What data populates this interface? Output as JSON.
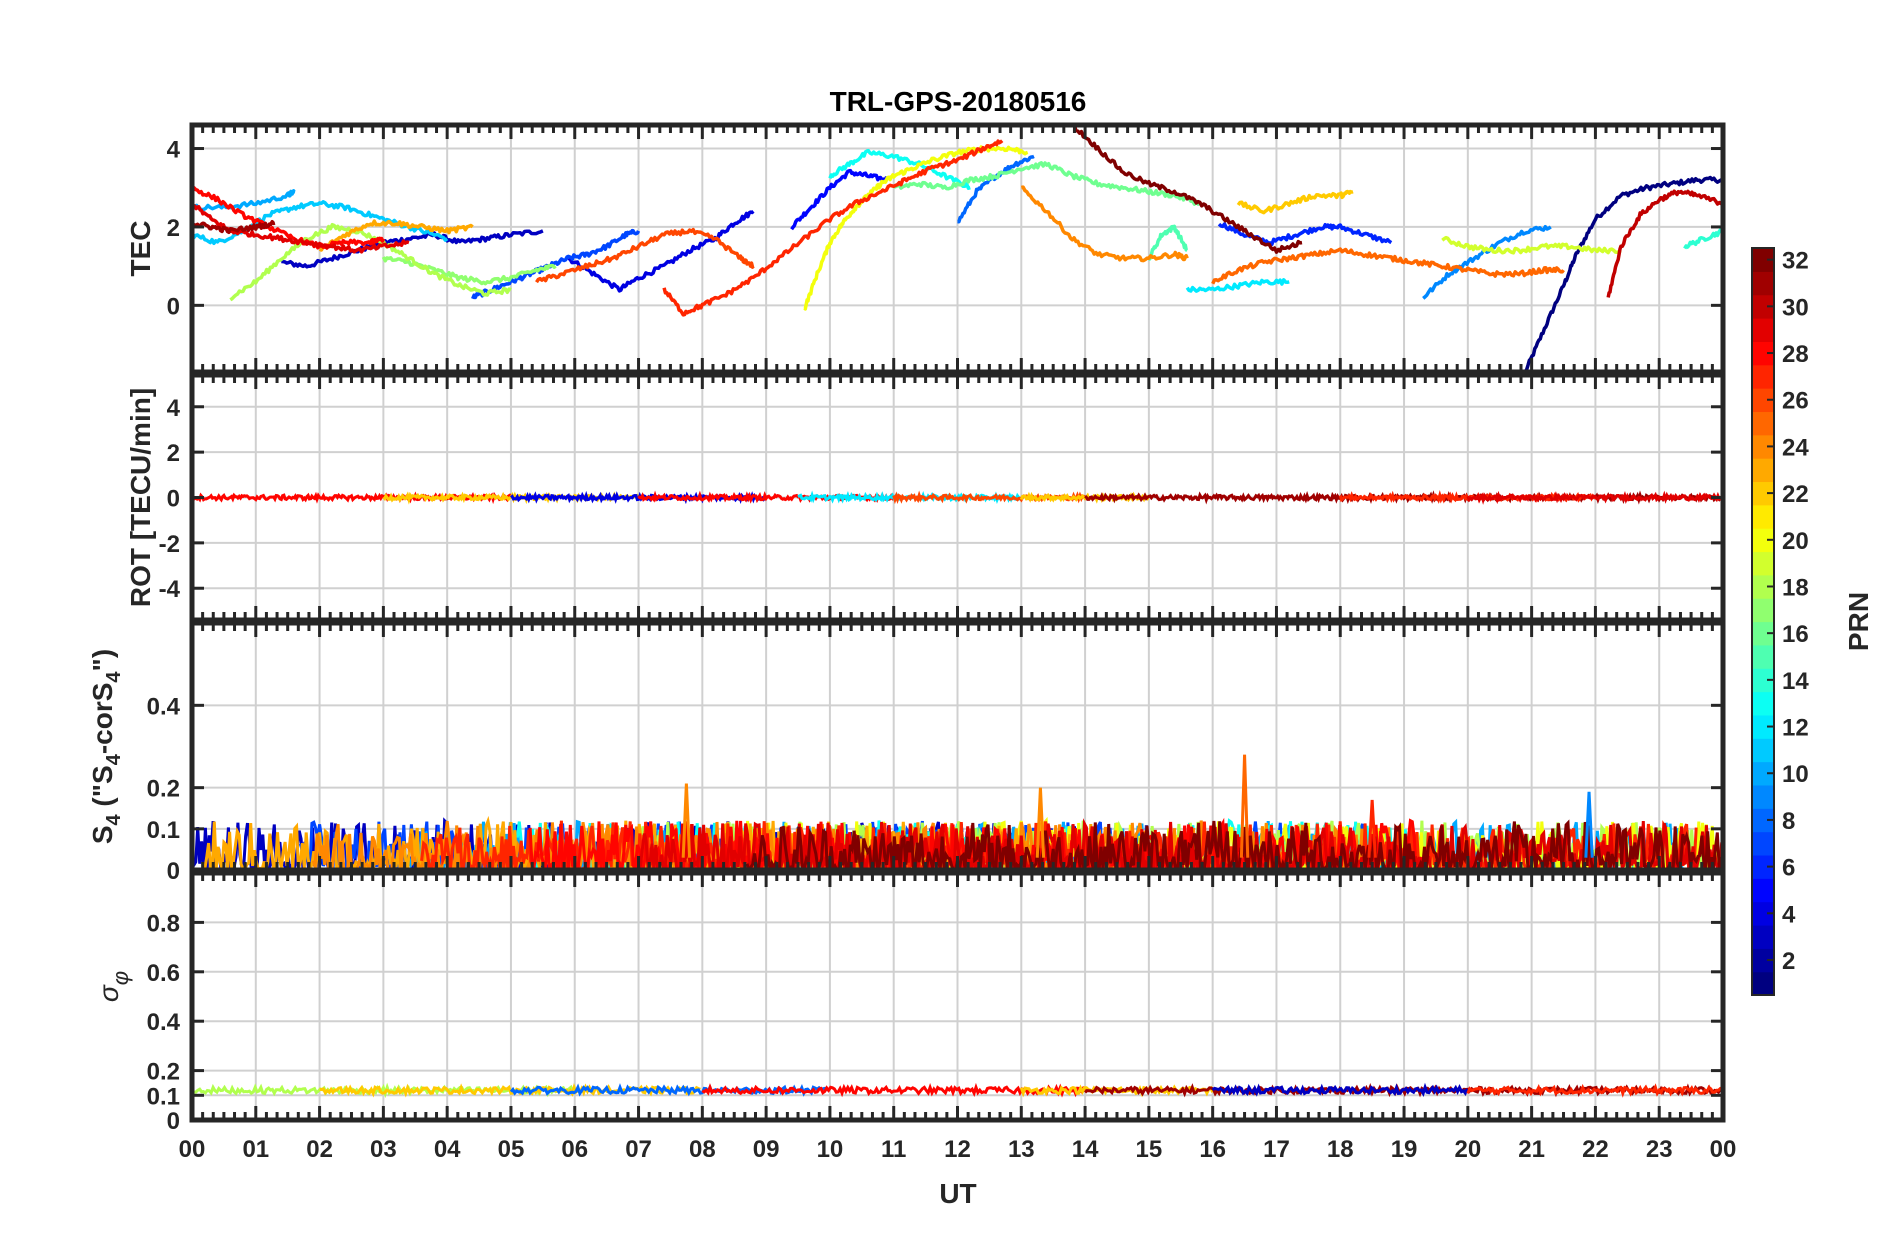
{
  "chart_data": [
    {
      "id": "tec",
      "type": "line",
      "title": "TRL-GPS-20180516",
      "ylabel": "TEC",
      "xlim": [
        0,
        24
      ],
      "ylim": [
        -1.7,
        4.6
      ],
      "yticks": [
        0,
        2,
        4
      ],
      "grid": true,
      "series": [
        {
          "prn": 1,
          "x": [
            20.9,
            21.2,
            21.5,
            21.7,
            22.0,
            22.4,
            22.8,
            23.2,
            23.6,
            24.0
          ],
          "y": [
            -1.7,
            -0.6,
            0.5,
            1.3,
            2.2,
            2.8,
            3.0,
            3.1,
            3.2,
            3.2
          ]
        },
        {
          "prn": 3,
          "x": [
            1.4,
            1.8,
            2.2,
            2.6,
            3.0,
            3.4,
            3.8,
            4.2,
            4.6,
            5.0,
            5.5
          ],
          "y": [
            1.1,
            1.0,
            1.2,
            1.4,
            1.6,
            1.7,
            1.8,
            1.6,
            1.7,
            1.8,
            1.9
          ]
        },
        {
          "prn": 4,
          "x": [
            5.9,
            6.3,
            6.7,
            7.0,
            7.4,
            7.8,
            8.2,
            8.5,
            8.8
          ],
          "y": [
            1.2,
            0.8,
            0.4,
            0.7,
            1.0,
            1.4,
            1.7,
            2.1,
            2.4
          ]
        },
        {
          "prn": 5,
          "x": [
            9.4,
            9.7,
            10.0,
            10.3,
            10.6,
            10.9
          ],
          "y": [
            2.0,
            2.5,
            3.0,
            3.4,
            3.3,
            3.2
          ]
        },
        {
          "prn": 6,
          "x": [
            16.1,
            16.5,
            16.9,
            17.3,
            17.7,
            18.0,
            18.4,
            18.8
          ],
          "y": [
            2.1,
            1.8,
            1.6,
            1.8,
            2.0,
            2.0,
            1.8,
            1.6
          ]
        },
        {
          "prn": 7,
          "x": [
            4.4,
            4.7,
            5.0,
            5.3,
            5.6,
            5.9,
            6.2,
            6.5,
            6.8,
            7.0
          ],
          "y": [
            0.2,
            0.4,
            0.6,
            0.8,
            1.0,
            1.2,
            1.3,
            1.5,
            1.8,
            1.9
          ]
        },
        {
          "prn": 8,
          "x": [
            12.0,
            12.3,
            12.6,
            12.9,
            13.2
          ],
          "y": [
            2.1,
            2.9,
            3.3,
            3.6,
            3.8
          ]
        },
        {
          "prn": 9,
          "x": [
            19.3,
            19.7,
            20.1,
            20.5,
            20.9,
            21.3
          ],
          "y": [
            0.2,
            0.8,
            1.2,
            1.6,
            1.9,
            2.0
          ]
        },
        {
          "prn": 10,
          "x": [
            0.0,
            0.5,
            1.0,
            1.5,
            1.6
          ],
          "y": [
            2.5,
            2.5,
            2.6,
            2.8,
            2.9
          ]
        },
        {
          "prn": 11,
          "x": [
            0.0,
            0.4,
            0.8,
            1.2,
            1.6,
            2.0,
            2.4,
            2.8,
            3.2,
            3.6,
            4.0
          ],
          "y": [
            1.8,
            1.6,
            1.9,
            2.3,
            2.5,
            2.6,
            2.5,
            2.3,
            2.1,
            1.9,
            1.7
          ]
        },
        {
          "prn": 12,
          "x": [
            15.6,
            16.0,
            16.4,
            16.8,
            17.2
          ],
          "y": [
            0.4,
            0.4,
            0.5,
            0.6,
            0.6
          ]
        },
        {
          "prn": 13,
          "x": [
            10.0,
            10.3,
            10.6,
            11.0,
            11.4,
            11.8,
            12.2
          ],
          "y": [
            3.3,
            3.6,
            3.9,
            3.8,
            3.6,
            3.3,
            3.0
          ]
        },
        {
          "prn": 14,
          "x": [
            23.4,
            23.7,
            24.0
          ],
          "y": [
            1.5,
            1.7,
            1.9
          ]
        },
        {
          "prn": 15,
          "x": [
            15.0,
            15.2,
            15.4,
            15.6
          ],
          "y": [
            1.2,
            1.8,
            2.0,
            1.4
          ]
        },
        {
          "prn": 16,
          "x": [
            11.0,
            11.4,
            11.8,
            12.2,
            12.6,
            13.0,
            13.4,
            13.8,
            14.2,
            14.6,
            15.0,
            15.4,
            15.8
          ],
          "y": [
            3.0,
            3.1,
            3.0,
            3.2,
            3.3,
            3.5,
            3.6,
            3.3,
            3.1,
            3.0,
            2.9,
            2.8,
            2.6
          ]
        },
        {
          "prn": 17,
          "x": [
            3.0,
            3.4,
            3.8,
            4.2,
            4.6,
            5.0,
            5.4,
            5.7
          ],
          "y": [
            1.2,
            1.1,
            0.9,
            0.7,
            0.6,
            0.7,
            0.9,
            1.0
          ]
        },
        {
          "prn": 18,
          "x": [
            0.6,
            1.0,
            1.4,
            1.8,
            2.2,
            2.6,
            3.0,
            3.4,
            3.8,
            4.2,
            4.6,
            5.0
          ],
          "y": [
            0.2,
            0.6,
            1.2,
            1.7,
            2.0,
            1.9,
            1.6,
            1.2,
            0.8,
            0.5,
            0.3,
            0.4
          ]
        },
        {
          "prn": 19,
          "x": [
            19.6,
            20.0,
            20.4,
            20.8,
            21.2,
            21.6,
            22.0,
            22.4
          ],
          "y": [
            1.7,
            1.5,
            1.4,
            1.4,
            1.5,
            1.5,
            1.4,
            1.4
          ]
        },
        {
          "prn": 20,
          "x": [
            9.6,
            9.8,
            10.0,
            10.2,
            10.4,
            10.6,
            10.8,
            11.0,
            11.3,
            11.6,
            12.0,
            12.4,
            12.8,
            13.1
          ],
          "y": [
            -0.1,
            0.8,
            1.6,
            2.1,
            2.5,
            2.8,
            3.1,
            3.3,
            3.5,
            3.7,
            3.9,
            4.0,
            4.0,
            3.9
          ]
        },
        {
          "prn": 22,
          "x": [
            16.4,
            16.8,
            17.2,
            17.6,
            18.0,
            18.2
          ],
          "y": [
            2.6,
            2.4,
            2.6,
            2.8,
            2.8,
            2.9
          ]
        },
        {
          "prn": 23,
          "x": [
            2.0,
            2.4,
            2.8,
            3.2,
            3.6,
            4.0,
            4.4
          ],
          "y": [
            1.4,
            1.8,
            2.1,
            2.1,
            2.0,
            1.9,
            2.0
          ]
        },
        {
          "prn": 24,
          "x": [
            13.0,
            13.4,
            13.8,
            14.2,
            14.6,
            15.0,
            15.4,
            15.6
          ],
          "y": [
            3.0,
            2.4,
            1.7,
            1.3,
            1.2,
            1.2,
            1.3,
            1.2
          ]
        },
        {
          "prn": 25,
          "x": [
            16.0,
            16.4,
            16.8,
            17.2,
            17.6,
            18.0,
            18.4,
            18.8,
            19.2,
            19.6,
            20.0,
            20.4,
            20.8,
            21.2,
            21.5
          ],
          "y": [
            0.6,
            0.9,
            1.1,
            1.2,
            1.3,
            1.4,
            1.3,
            1.2,
            1.1,
            1.0,
            0.9,
            0.8,
            0.8,
            0.9,
            0.9
          ]
        },
        {
          "prn": 26,
          "x": [
            5.4,
            5.8,
            6.2,
            6.6,
            7.0,
            7.4,
            7.8,
            8.2,
            8.6,
            8.8
          ],
          "y": [
            0.6,
            0.8,
            1.0,
            1.2,
            1.5,
            1.8,
            1.9,
            1.7,
            1.2,
            1.0
          ]
        },
        {
          "prn": 27,
          "x": [
            7.4,
            7.7,
            8.0,
            8.4,
            8.8,
            9.2,
            9.6,
            10.0,
            10.4,
            10.8,
            11.2,
            11.6,
            12.0,
            12.4,
            12.7
          ],
          "y": [
            0.4,
            -0.2,
            0.0,
            0.3,
            0.7,
            1.2,
            1.7,
            2.2,
            2.6,
            2.9,
            3.2,
            3.5,
            3.7,
            4.0,
            4.2
          ]
        },
        {
          "prn": 28,
          "x": [
            0.0,
            0.4,
            0.8,
            1.2,
            1.6,
            2.0,
            2.4,
            2.8,
            3.0
          ],
          "y": [
            3.0,
            2.7,
            2.3,
            2.0,
            1.7,
            1.5,
            1.6,
            1.6,
            1.7
          ]
        },
        {
          "prn": 29,
          "x": [
            0.0,
            0.3,
            0.6,
            1.0,
            1.4,
            1.8,
            2.2,
            2.6,
            3.0,
            3.4
          ],
          "y": [
            2.6,
            2.2,
            1.9,
            1.8,
            1.7,
            1.6,
            1.5,
            1.4,
            1.5,
            1.6
          ]
        },
        {
          "prn": 30,
          "x": [
            22.2,
            22.4,
            22.7,
            23.0,
            23.3,
            23.6,
            24.0
          ],
          "y": [
            0.2,
            1.5,
            2.3,
            2.7,
            2.9,
            2.8,
            2.6
          ]
        },
        {
          "prn": 31,
          "x": [
            0.0,
            0.3,
            0.6,
            1.0,
            1.3
          ],
          "y": [
            2.1,
            2.0,
            1.9,
            2.0,
            2.1
          ]
        },
        {
          "prn": 32,
          "x": [
            13.8,
            14.2,
            14.6,
            15.0,
            15.4,
            15.8,
            16.2,
            16.6,
            17.0,
            17.4
          ],
          "y": [
            4.6,
            4.0,
            3.4,
            3.1,
            2.9,
            2.6,
            2.2,
            1.8,
            1.4,
            1.6
          ]
        }
      ]
    },
    {
      "id": "rot",
      "type": "line",
      "ylabel": "ROT [TECU/min]",
      "xlim": [
        0,
        24
      ],
      "ylim": [
        -5.4,
        5.4
      ],
      "yticks": [
        -4,
        -2,
        0,
        2,
        4
      ],
      "grid": true,
      "typical_value": 0.0,
      "noise_amplitude": 0.1
    },
    {
      "id": "s4",
      "type": "line",
      "ylabel_main": "S",
      "ylabel_sub1": "4",
      "ylabel_mid": " (\"S",
      "ylabel_sub2": "4",
      "ylabel_mid2": "-corS",
      "ylabel_sub3": "4",
      "ylabel_end": "\")",
      "xlim": [
        0,
        24
      ],
      "ylim": [
        0,
        0.6
      ],
      "yticks": [
        0,
        0.1,
        0.2,
        0.4
      ],
      "grid": true,
      "typical_range": [
        0.0,
        0.12
      ],
      "spikes": [
        {
          "x": 7.75,
          "y": 0.21,
          "prn": 24
        },
        {
          "x": 13.3,
          "y": 0.2,
          "prn": 24
        },
        {
          "x": 16.5,
          "y": 0.28,
          "prn": 25
        },
        {
          "x": 21.9,
          "y": 0.19,
          "prn": 9
        },
        {
          "x": 18.5,
          "y": 0.17,
          "prn": 27
        }
      ]
    },
    {
      "id": "sigma_phi",
      "type": "line",
      "ylabel_main": "σ",
      "ylabel_sub": "φ",
      "xlim": [
        0,
        24
      ],
      "ylim": [
        0,
        1.0
      ],
      "yticks": [
        0,
        0.1,
        0.2,
        0.4,
        0.6,
        0.8
      ],
      "grid": true,
      "typical_value": 0.12,
      "xlabel": "UT",
      "xticks": [
        "00",
        "01",
        "02",
        "03",
        "04",
        "05",
        "06",
        "07",
        "08",
        "09",
        "10",
        "11",
        "12",
        "13",
        "14",
        "15",
        "16",
        "17",
        "18",
        "19",
        "20",
        "21",
        "22",
        "23",
        "00"
      ]
    }
  ],
  "colorbar": {
    "label": "PRN",
    "range": [
      1,
      32
    ],
    "ticks": [
      2,
      4,
      6,
      8,
      10,
      12,
      14,
      16,
      18,
      20,
      22,
      24,
      26,
      28,
      30,
      32
    ],
    "colormap": "jet"
  }
}
